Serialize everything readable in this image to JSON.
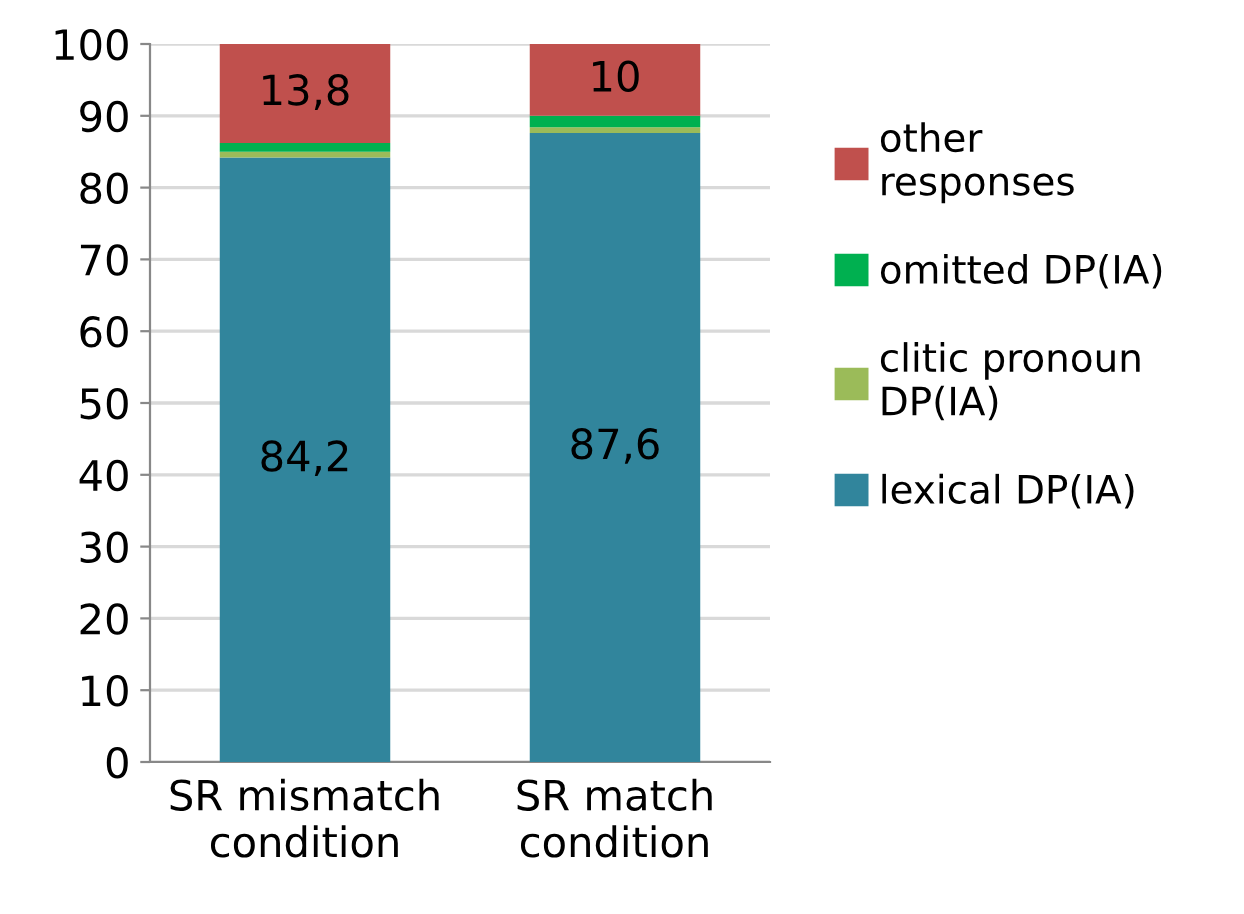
{
  "chart_data": {
    "type": "bar",
    "stacked": true,
    "categories": [
      "SR mismatch\ncondition",
      "SR match\ncondition"
    ],
    "series": [
      {
        "name": "lexical DP(IA)",
        "color": "#31859c",
        "values": [
          84.2,
          87.6
        ],
        "value_labels": [
          "84,2",
          "87,6"
        ]
      },
      {
        "name": "clitic pronoun\nDP(IA)",
        "color": "#9bbb59",
        "values": [
          0.8,
          0.8
        ]
      },
      {
        "name": "omitted DP(IA)",
        "color": "#00b050",
        "values": [
          1.2,
          1.6
        ]
      },
      {
        "name": "other\nresponses",
        "color": "#c0504d",
        "values": [
          13.8,
          10
        ],
        "value_labels": [
          "13,8",
          "10"
        ]
      }
    ],
    "ylim": [
      0,
      100
    ],
    "yticks": [
      0,
      10,
      20,
      30,
      40,
      50,
      60,
      70,
      80,
      90,
      100
    ],
    "grid": "y",
    "legend": "right"
  }
}
